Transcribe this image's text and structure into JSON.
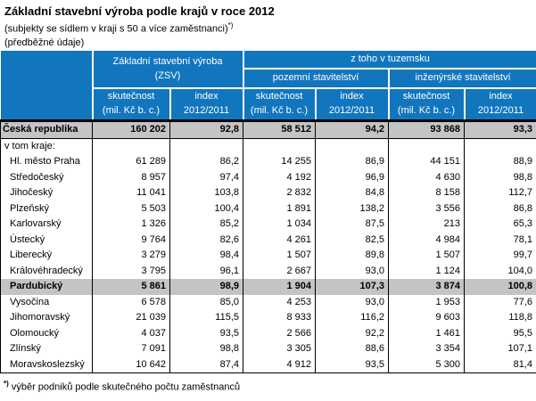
{
  "title": "Základní stavební výroba podle krajů v roce 2012",
  "subtitle": "(subjekty se sídlem v kraji s 50 a více zaměstnanci)",
  "note_marker": "*)",
  "note_prelim": "(předběžné údaje)",
  "colors": {
    "header_blue": "#1276be",
    "highlight_gray": "#c4c4c4"
  },
  "table": {
    "group_headers": {
      "zsv_line1": "Základní stavební výroba",
      "zsv_line2": "(ZSV)",
      "domestic": "z toho v tuzemsku",
      "building": "pozemní stavitelství",
      "civil": "inženýrské stavitelství"
    },
    "measure_headers": {
      "fact_line1": "skutečnost",
      "fact_line2": "(mil. Kč b. c.)",
      "index_line1": "index",
      "index_line2": "2012/2011"
    },
    "rows": [
      {
        "label": "Česká republika",
        "style": "total",
        "values": [
          "160 202",
          "92,8",
          "58 512",
          "94,2",
          "93 868",
          "93,3"
        ]
      },
      {
        "label": "v tom kraje:",
        "style": "section",
        "values": [
          "",
          "",
          "",
          "",
          "",
          ""
        ]
      },
      {
        "label": "Hl. město Praha",
        "style": "region",
        "values": [
          "61 289",
          "86,2",
          "14 255",
          "86,9",
          "44 151",
          "88,9"
        ]
      },
      {
        "label": "Středočeský",
        "style": "region",
        "values": [
          "8 957",
          "97,4",
          "4 192",
          "96,9",
          "4 630",
          "98,8"
        ]
      },
      {
        "label": "Jihočeský",
        "style": "region",
        "values": [
          "11 041",
          "103,8",
          "2 832",
          "84,8",
          "8 158",
          "112,7"
        ]
      },
      {
        "label": "Plzeňský",
        "style": "region",
        "values": [
          "5 503",
          "100,4",
          "1 891",
          "138,2",
          "3 556",
          "86,8"
        ]
      },
      {
        "label": "Karlovarský",
        "style": "region",
        "values": [
          "1 326",
          "85,2",
          "1 034",
          "87,5",
          "213",
          "65,3"
        ]
      },
      {
        "label": "Ústecký",
        "style": "region",
        "values": [
          "9 764",
          "82,6",
          "4 261",
          "82,5",
          "4 984",
          "78,1"
        ]
      },
      {
        "label": "Liberecký",
        "style": "region",
        "values": [
          "3 279",
          "98,4",
          "1 507",
          "89,8",
          "1 507",
          "99,7"
        ]
      },
      {
        "label": "Královéhradecký",
        "style": "region",
        "values": [
          "3 795",
          "96,1",
          "2 667",
          "93,0",
          "1 124",
          "104,0"
        ]
      },
      {
        "label": "Pardubický",
        "style": "highlight",
        "values": [
          "5 861",
          "98,9",
          "1 904",
          "107,3",
          "3 874",
          "100,8"
        ]
      },
      {
        "label": "Vysočina",
        "style": "region",
        "values": [
          "6 578",
          "85,0",
          "4 253",
          "93,0",
          "1 953",
          "77,6"
        ]
      },
      {
        "label": "Jihomoravský",
        "style": "region",
        "values": [
          "21 039",
          "115,5",
          "8 933",
          "116,2",
          "9 603",
          "118,8"
        ]
      },
      {
        "label": "Olomoucký",
        "style": "region",
        "values": [
          "4 037",
          "93,5",
          "2 566",
          "92,2",
          "1 461",
          "95,5"
        ]
      },
      {
        "label": "Zlínský",
        "style": "region",
        "values": [
          "7 091",
          "98,8",
          "3 305",
          "88,6",
          "3 354",
          "107,1"
        ]
      },
      {
        "label": "Moravskoslezský",
        "style": "region",
        "values": [
          "10 642",
          "87,4",
          "4 912",
          "93,5",
          "5 300",
          "81,4"
        ]
      }
    ]
  },
  "footnote": {
    "marker": "*)",
    "text": "výběr podniků podle skutečného počtu zaměstnanců"
  }
}
